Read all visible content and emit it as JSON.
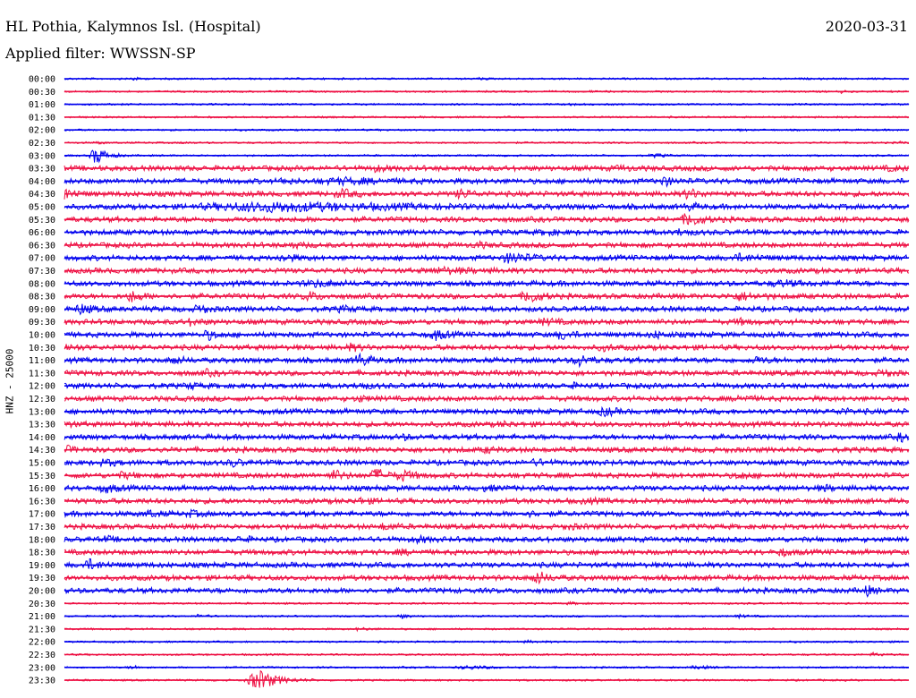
{
  "header": {
    "title": "HL Pothia, Kalymnos Isl. (Hospital)",
    "date": "2020-03-31",
    "filter": "Applied filter: WWSSN-SP"
  },
  "chart_data": {
    "type": "line",
    "kind": "helicorder",
    "ylabel": "HNZ - 25000",
    "colors": [
      "#0000ee",
      "#ee1144"
    ],
    "rows": [
      {
        "label": "00:00",
        "events": [
          {
            "t": 0.08,
            "a": 0.5,
            "d": 0.005
          },
          {
            "t": 0.49,
            "a": 0.25,
            "d": 0.005
          }
        ]
      },
      {
        "label": "00:30",
        "events": [
          {
            "t": 0.62,
            "a": 0.2,
            "d": 0.004
          },
          {
            "t": 0.92,
            "a": 0.25,
            "d": 0.004
          }
        ]
      },
      {
        "label": "01:00",
        "events": [
          {
            "t": 0.6,
            "a": 0.25,
            "d": 0.005
          }
        ]
      },
      {
        "label": "01:30",
        "events": []
      },
      {
        "label": "02:00",
        "events": [
          {
            "t": 0.8,
            "a": 0.2,
            "d": 0.004
          }
        ]
      },
      {
        "label": "02:30",
        "events": [
          {
            "t": 0.04,
            "a": 0.4,
            "d": 0.004
          },
          {
            "t": 0.14,
            "a": 0.25,
            "d": 0.004
          },
          {
            "t": 0.99,
            "a": 0.3,
            "d": 0.004
          }
        ]
      },
      {
        "label": "03:00",
        "events": [
          {
            "t": 0.038,
            "a": 2.2,
            "d": 0.01
          },
          {
            "t": 0.7,
            "a": 0.4,
            "d": 0.01
          }
        ]
      },
      {
        "label": "03:30",
        "events": [
          {
            "t": 0.37,
            "a": 0.5,
            "d": 0.01
          },
          {
            "t": 0.66,
            "a": 0.4,
            "d": 0.01
          },
          {
            "t": 0.98,
            "a": 0.4,
            "d": 0.01
          }
        ]
      },
      {
        "label": "04:00",
        "events": [
          {
            "t": 0.26,
            "a": 0.8,
            "d": 0.006
          },
          {
            "t": 0.33,
            "a": 0.5,
            "d": 0.04
          },
          {
            "t": 0.71,
            "a": 1.0,
            "d": 0.008
          }
        ]
      },
      {
        "label": "04:30",
        "events": [
          {
            "t": 0.0,
            "a": 1.2,
            "d": 0.01
          },
          {
            "t": 0.33,
            "a": 0.8,
            "d": 0.012
          },
          {
            "t": 0.47,
            "a": 0.9,
            "d": 0.01
          },
          {
            "t": 0.74,
            "a": 0.9,
            "d": 0.012
          }
        ]
      },
      {
        "label": "05:00",
        "events": [
          {
            "t": 0.25,
            "a": 0.9,
            "d": 0.12
          },
          {
            "t": 0.74,
            "a": 0.6,
            "d": 0.01
          }
        ]
      },
      {
        "label": "05:30",
        "events": [
          {
            "t": 0.74,
            "a": 1.4,
            "d": 0.012
          }
        ]
      },
      {
        "label": "06:00",
        "events": [
          {
            "t": 0.57,
            "a": 0.5,
            "d": 0.01
          },
          {
            "t": 0.73,
            "a": 0.6,
            "d": 0.01
          }
        ]
      },
      {
        "label": "06:30",
        "events": [
          {
            "t": 0.27,
            "a": 0.5,
            "d": 0.01
          },
          {
            "t": 0.49,
            "a": 0.5,
            "d": 0.01
          }
        ]
      },
      {
        "label": "07:00",
        "events": [
          {
            "t": 0.26,
            "a": 0.7,
            "d": 0.01
          },
          {
            "t": 0.53,
            "a": 1.2,
            "d": 0.015
          },
          {
            "t": 0.8,
            "a": 0.6,
            "d": 0.02
          }
        ]
      },
      {
        "label": "07:30",
        "events": [
          {
            "t": 0.45,
            "a": 0.5,
            "d": 0.03
          }
        ]
      },
      {
        "label": "08:00",
        "events": [
          {
            "t": 0.3,
            "a": 0.6,
            "d": 0.02
          },
          {
            "t": 0.85,
            "a": 0.5,
            "d": 0.02
          }
        ]
      },
      {
        "label": "08:30",
        "events": [
          {
            "t": 0.08,
            "a": 1.1,
            "d": 0.01
          },
          {
            "t": 0.29,
            "a": 0.9,
            "d": 0.01
          },
          {
            "t": 0.55,
            "a": 1.5,
            "d": 0.01
          },
          {
            "t": 0.8,
            "a": 0.7,
            "d": 0.02
          }
        ]
      },
      {
        "label": "09:00",
        "events": [
          {
            "t": 0.02,
            "a": 1.0,
            "d": 0.01
          },
          {
            "t": 0.16,
            "a": 0.9,
            "d": 0.008
          },
          {
            "t": 0.33,
            "a": 0.5,
            "d": 0.01
          }
        ]
      },
      {
        "label": "09:30",
        "events": [
          {
            "t": 0.15,
            "a": 0.6,
            "d": 0.01
          },
          {
            "t": 0.57,
            "a": 0.6,
            "d": 0.01
          },
          {
            "t": 0.8,
            "a": 0.5,
            "d": 0.01
          }
        ]
      },
      {
        "label": "10:00",
        "events": [
          {
            "t": 0.17,
            "a": 0.9,
            "d": 0.01
          },
          {
            "t": 0.44,
            "a": 1.0,
            "d": 0.01
          },
          {
            "t": 0.59,
            "a": 0.9,
            "d": 0.01
          },
          {
            "t": 0.7,
            "a": 0.6,
            "d": 0.01
          }
        ]
      },
      {
        "label": "10:30",
        "events": [
          {
            "t": 0.0,
            "a": 0.7,
            "d": 0.01
          },
          {
            "t": 0.34,
            "a": 0.6,
            "d": 0.01
          },
          {
            "t": 0.64,
            "a": 0.5,
            "d": 0.01
          }
        ]
      },
      {
        "label": "11:00",
        "events": [
          {
            "t": 0.13,
            "a": 0.8,
            "d": 0.008
          },
          {
            "t": 0.35,
            "a": 1.3,
            "d": 0.01
          },
          {
            "t": 0.61,
            "a": 1.2,
            "d": 0.01
          },
          {
            "t": 0.82,
            "a": 0.6,
            "d": 0.01
          }
        ]
      },
      {
        "label": "11:30",
        "events": [
          {
            "t": 0.17,
            "a": 0.5,
            "d": 0.01
          },
          {
            "t": 0.97,
            "a": 0.6,
            "d": 0.01
          }
        ]
      },
      {
        "label": "12:00",
        "events": [
          {
            "t": 0.15,
            "a": 0.5,
            "d": 0.01
          },
          {
            "t": 0.35,
            "a": 0.6,
            "d": 0.01
          },
          {
            "t": 0.6,
            "a": 0.4,
            "d": 0.01
          }
        ]
      },
      {
        "label": "12:30",
        "events": [
          {
            "t": 0.35,
            "a": 0.5,
            "d": 0.01
          },
          {
            "t": 0.8,
            "a": 0.6,
            "d": 0.01
          }
        ]
      },
      {
        "label": "13:00",
        "events": [
          {
            "t": 0.64,
            "a": 0.8,
            "d": 0.01
          },
          {
            "t": 0.92,
            "a": 0.5,
            "d": 0.01
          }
        ]
      },
      {
        "label": "13:30",
        "events": [
          {
            "t": 0.0,
            "a": 0.4,
            "d": 0.01
          },
          {
            "t": 0.52,
            "a": 0.4,
            "d": 0.01
          }
        ]
      },
      {
        "label": "14:00",
        "events": [
          {
            "t": 0.4,
            "a": 0.4,
            "d": 0.01
          },
          {
            "t": 0.99,
            "a": 0.8,
            "d": 0.006
          }
        ]
      },
      {
        "label": "14:30",
        "events": [
          {
            "t": 0.0,
            "a": 0.9,
            "d": 0.008
          },
          {
            "t": 0.5,
            "a": 0.5,
            "d": 0.01
          }
        ]
      },
      {
        "label": "15:00",
        "events": [
          {
            "t": 0.05,
            "a": 0.6,
            "d": 0.01
          },
          {
            "t": 0.2,
            "a": 0.7,
            "d": 0.008
          },
          {
            "t": 0.56,
            "a": 0.5,
            "d": 0.01
          }
        ]
      },
      {
        "label": "15:30",
        "events": [
          {
            "t": 0.07,
            "a": 0.6,
            "d": 0.01
          },
          {
            "t": 0.32,
            "a": 1.0,
            "d": 0.01
          },
          {
            "t": 0.37,
            "a": 1.3,
            "d": 0.012
          },
          {
            "t": 0.4,
            "a": 1.0,
            "d": 0.01
          },
          {
            "t": 0.8,
            "a": 0.6,
            "d": 0.01
          }
        ]
      },
      {
        "label": "16:00",
        "events": [
          {
            "t": 0.05,
            "a": 0.8,
            "d": 0.01
          },
          {
            "t": 0.5,
            "a": 0.5,
            "d": 0.01
          },
          {
            "t": 0.9,
            "a": 0.5,
            "d": 0.01
          }
        ]
      },
      {
        "label": "16:30",
        "events": [
          {
            "t": 0.35,
            "a": 0.5,
            "d": 0.01
          },
          {
            "t": 0.62,
            "a": 0.4,
            "d": 0.01
          }
        ]
      },
      {
        "label": "17:00",
        "events": [
          {
            "t": 0.1,
            "a": 0.6,
            "d": 0.01
          },
          {
            "t": 0.15,
            "a": 0.6,
            "d": 0.008
          },
          {
            "t": 0.55,
            "a": 0.4,
            "d": 0.01
          }
        ]
      },
      {
        "label": "17:30",
        "events": [
          {
            "t": 0.38,
            "a": 0.6,
            "d": 0.01
          },
          {
            "t": 0.6,
            "a": 0.4,
            "d": 0.01
          }
        ]
      },
      {
        "label": "18:00",
        "events": [
          {
            "t": 0.05,
            "a": 0.5,
            "d": 0.008
          },
          {
            "t": 0.21,
            "a": 0.6,
            "d": 0.008
          },
          {
            "t": 0.42,
            "a": 0.5,
            "d": 0.01
          }
        ]
      },
      {
        "label": "18:30",
        "events": [
          {
            "t": 0.4,
            "a": 0.4,
            "d": 0.01
          },
          {
            "t": 0.85,
            "a": 0.7,
            "d": 0.008
          }
        ]
      },
      {
        "label": "19:00",
        "events": [
          {
            "t": 0.03,
            "a": 1.0,
            "d": 0.012
          }
        ]
      },
      {
        "label": "19:30",
        "events": [
          {
            "t": 0.56,
            "a": 1.4,
            "d": 0.01
          }
        ]
      },
      {
        "label": "20:00",
        "events": [
          {
            "t": 0.95,
            "a": 1.1,
            "d": 0.006
          }
        ]
      },
      {
        "label": "20:30",
        "events": [
          {
            "t": 0.6,
            "a": 0.2,
            "d": 0.01
          }
        ]
      },
      {
        "label": "21:00",
        "events": [
          {
            "t": 0.16,
            "a": 0.4,
            "d": 0.008
          },
          {
            "t": 0.4,
            "a": 0.4,
            "d": 0.008
          },
          {
            "t": 0.8,
            "a": 0.3,
            "d": 0.008
          }
        ]
      },
      {
        "label": "21:30",
        "events": [
          {
            "t": 0.35,
            "a": 0.3,
            "d": 0.01
          }
        ]
      },
      {
        "label": "22:00",
        "events": [
          {
            "t": 0.55,
            "a": 0.2,
            "d": 0.01
          }
        ]
      },
      {
        "label": "22:30",
        "events": [
          {
            "t": 0.96,
            "a": 0.4,
            "d": 0.008
          }
        ]
      },
      {
        "label": "23:00",
        "events": [
          {
            "t": 0.08,
            "a": 0.5,
            "d": 0.006
          },
          {
            "t": 0.48,
            "a": 0.4,
            "d": 0.02
          },
          {
            "t": 0.75,
            "a": 0.4,
            "d": 0.01
          }
        ]
      },
      {
        "label": "23:30",
        "events": [
          {
            "t": 0.23,
            "a": 2.6,
            "d": 0.018
          }
        ]
      }
    ]
  }
}
